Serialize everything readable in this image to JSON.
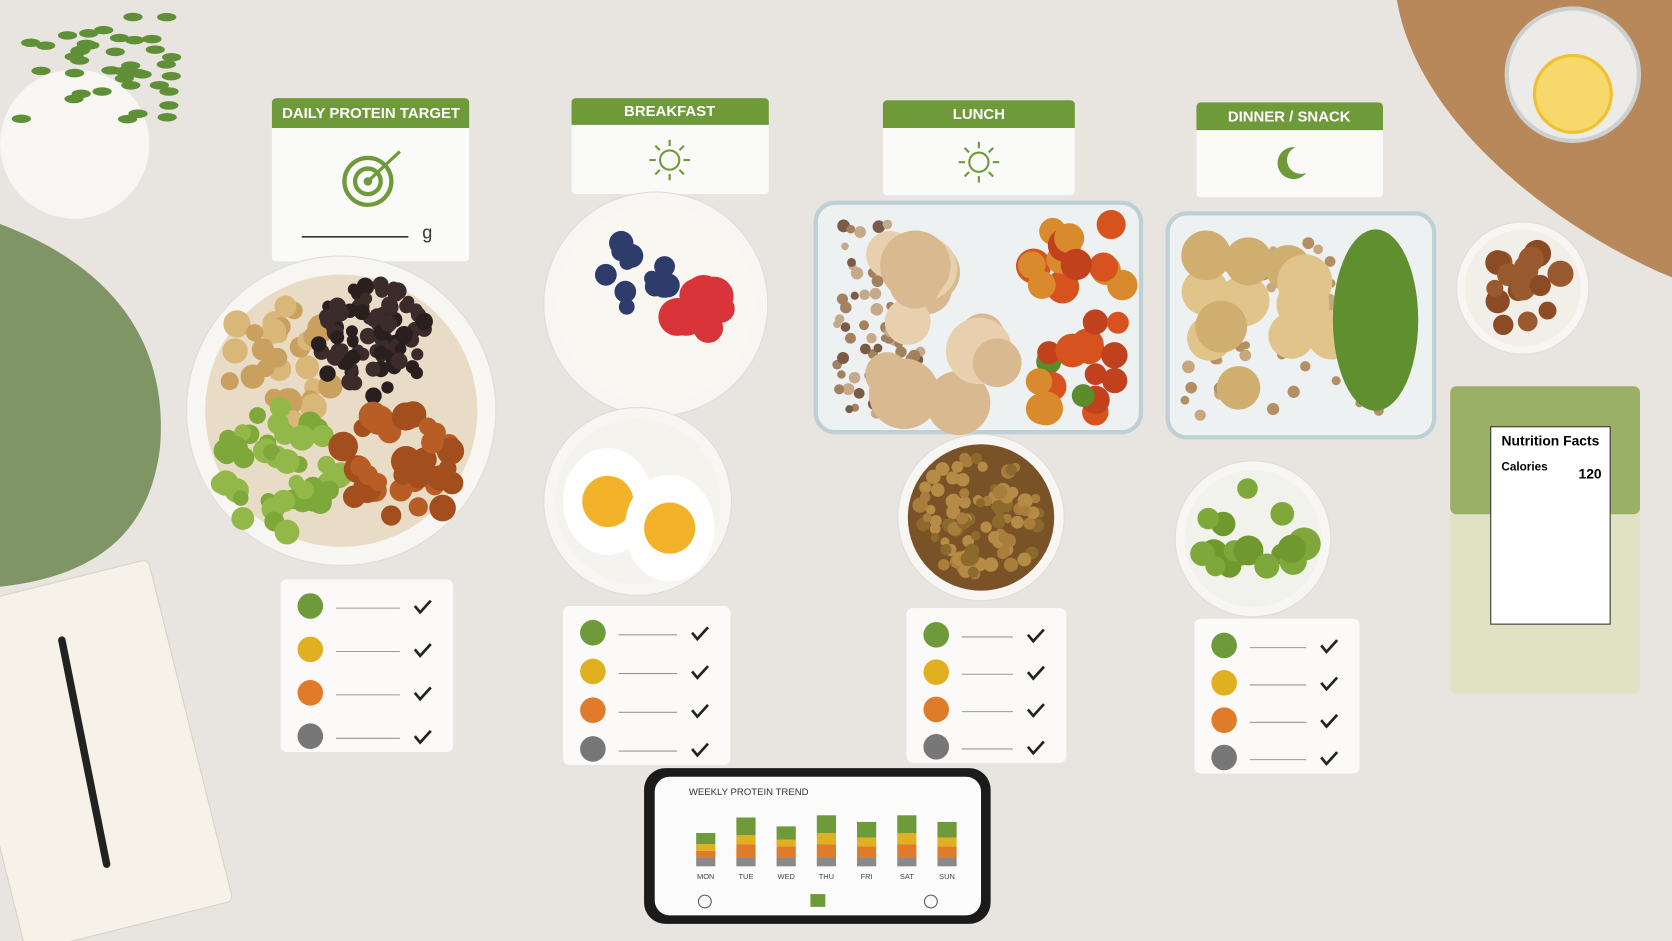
{
  "cards": [
    {
      "title": "DAILY PROTEIN TARGET",
      "unit": "g"
    },
    {
      "title": "BREAKFAST"
    },
    {
      "title": "LUNCH"
    },
    {
      "title": "DINNER / SNACK"
    }
  ],
  "nutrition_label": {
    "title": "Nutrition Facts",
    "calories_label": "Calories",
    "calories": 120
  },
  "chart_data": {
    "type": "bar",
    "stacked": true,
    "title": "WEEKLY PROTEIN TREND",
    "categories": [
      "MON",
      "TUE",
      "WED",
      "THU",
      "FRI",
      "SAT",
      "SUN"
    ],
    "ylim": [
      0,
      50
    ],
    "series": [
      {
        "color": "#8a8a8a",
        "values": [
          8,
          8,
          8,
          8,
          8,
          8,
          8
        ]
      },
      {
        "color": "#e07b2a",
        "values": [
          6,
          12,
          10,
          12,
          10,
          12,
          10
        ]
      },
      {
        "color": "#e0b020",
        "values": [
          6,
          8,
          6,
          10,
          8,
          10,
          8
        ]
      },
      {
        "color": "#6f9a3a",
        "values": [
          10,
          16,
          12,
          16,
          14,
          16,
          14
        ]
      }
    ]
  }
}
